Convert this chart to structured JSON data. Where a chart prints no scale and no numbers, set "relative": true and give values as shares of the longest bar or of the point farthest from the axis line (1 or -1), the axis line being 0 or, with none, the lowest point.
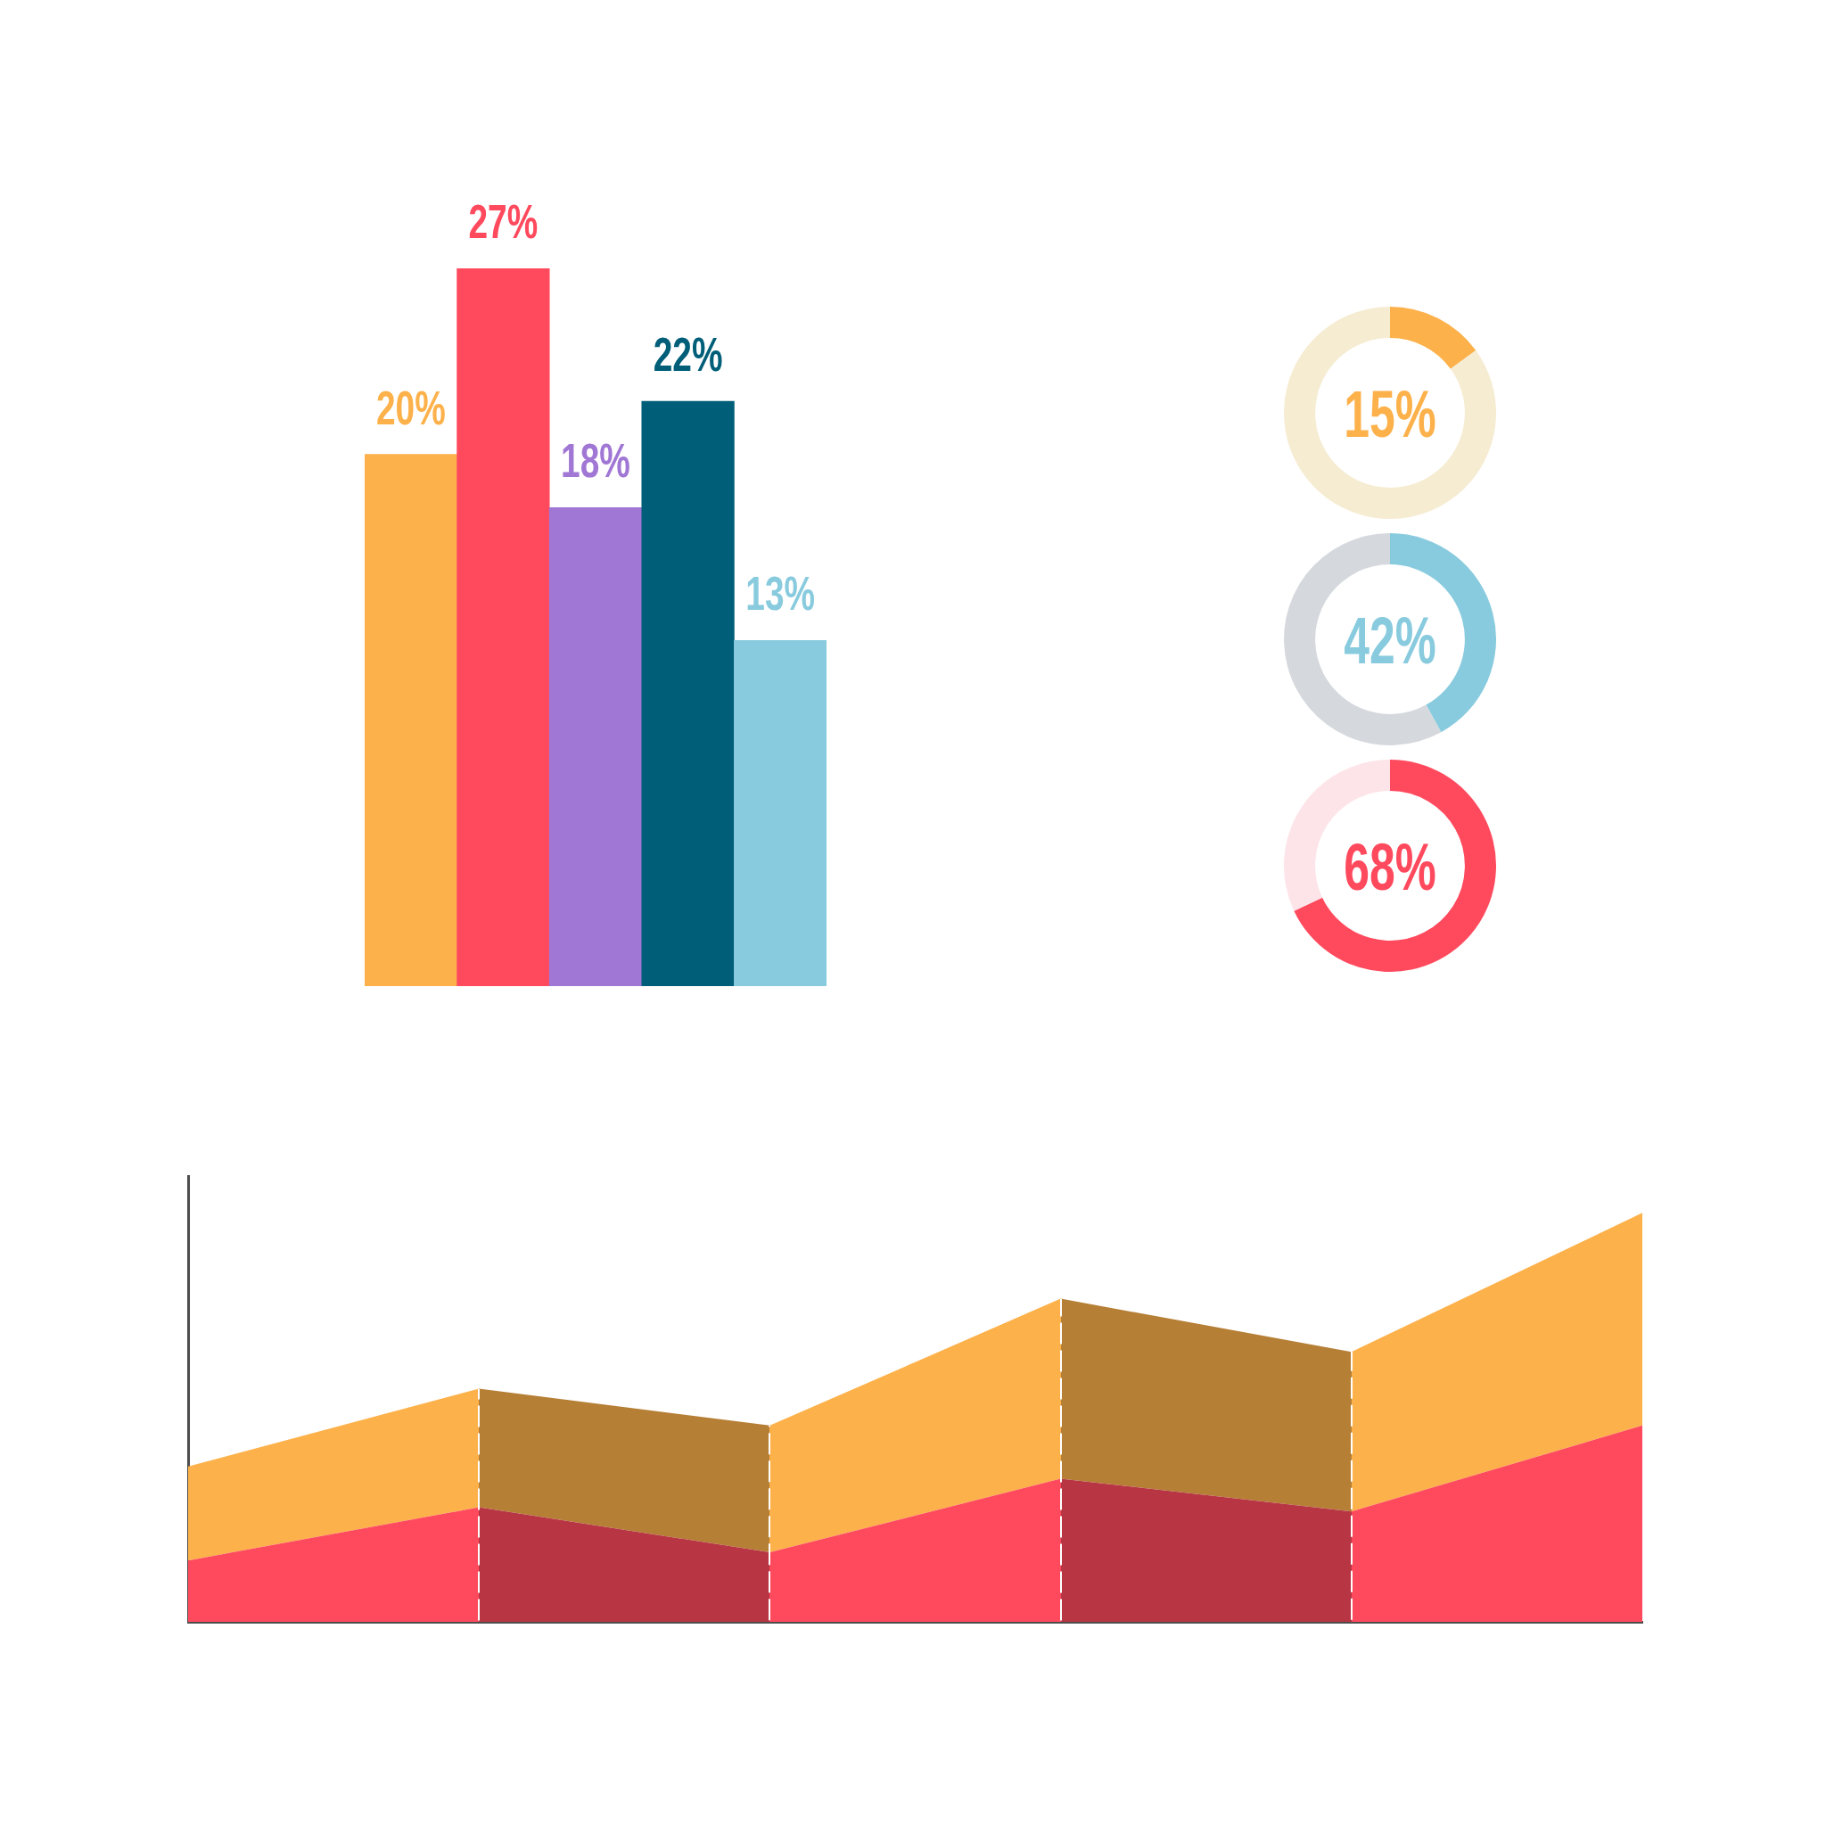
{
  "chart_data": [
    {
      "type": "bar",
      "categories": [
        null,
        null,
        null,
        null,
        null
      ],
      "values": [
        20,
        27,
        18,
        22,
        13
      ],
      "colors": [
        "#fdb14b",
        "#ff4a5e",
        "#a077d4",
        "#005e78",
        "#89cbde"
      ],
      "value_labels": [
        "20%",
        "27%",
        "18%",
        "22%",
        "13%"
      ],
      "tick_labels": false
    },
    {
      "type": "donut",
      "categories": [
        null,
        null
      ],
      "values": [
        15,
        85
      ],
      "colors": [
        "#fdb14b",
        "#f6ecd2"
      ],
      "annotations": [
        "15%"
      ]
    },
    {
      "type": "donut",
      "categories": [
        null,
        null
      ],
      "values": [
        42,
        58
      ],
      "colors": [
        "#89cbde",
        "#d5d9dd"
      ],
      "annotations": [
        "42%"
      ]
    },
    {
      "type": "donut",
      "categories": [
        null,
        null
      ],
      "values": [
        68,
        32
      ],
      "colors": [
        "#ff4a5e",
        "#fde4e8"
      ],
      "annotations": [
        "68%"
      ]
    },
    {
      "type": "area",
      "stacked": true,
      "relative": true,
      "tick_labels": false,
      "categories": [
        null,
        null,
        null,
        null,
        null,
        null
      ],
      "series": [
        {
          "color": "#ff4a5e",
          "values": [
            0.15,
            0.28,
            0.17,
            0.35,
            0.27,
            0.48
          ]
        },
        {
          "color": "#fdb14b",
          "values": [
            0.23,
            0.29,
            0.31,
            0.44,
            0.39,
            0.52
          ]
        }
      ]
    }
  ]
}
